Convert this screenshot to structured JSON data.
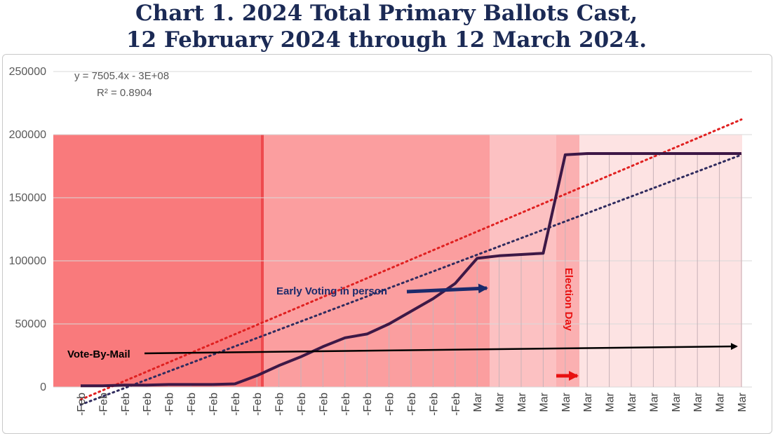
{
  "title_line1": "Chart 1. 2024 Total Primary Ballots Cast,",
  "title_line2": "12 February 2024 through 12 March 2024.",
  "chart_data": {
    "type": "line",
    "ylim": [
      0,
      250000
    ],
    "yticks": [
      0,
      50000,
      100000,
      150000,
      200000,
      250000
    ],
    "categories": [
      "-Feb",
      "-Feb",
      "-Feb",
      "-Feb",
      "-Feb",
      "-Feb",
      "-Feb",
      "-Feb",
      "-Feb",
      "-Feb",
      "-Feb",
      "-Feb",
      "-Feb",
      "-Feb",
      "-Feb",
      "-Feb",
      "-Feb",
      "-Feb",
      "Mar",
      "Mar",
      "Mar",
      "Mar",
      "Mar",
      "Mar",
      "Mar",
      "Mar",
      "Mar",
      "Mar",
      "Mar",
      "Mar",
      "Mar"
    ],
    "series": [
      {
        "values": [
          1000,
          1000,
          1500,
          1500,
          2000,
          2000,
          2000,
          2500,
          9000,
          17000,
          24000,
          32000,
          39000,
          42000,
          50000,
          60000,
          70000,
          82000,
          102000,
          104000,
          105000,
          106000,
          184000,
          185000,
          185000,
          185000,
          185000,
          185000,
          185000,
          185000,
          185000
        ],
        "color": "#3d1846"
      }
    ],
    "trendlines": [
      {
        "equation": "y = 7505.4x - 3E+08",
        "r_squared": "R² = 0.8904",
        "color": "#2f2b5e",
        "from": -14000,
        "to": 184000
      },
      {
        "color": "#e02020",
        "from": -10000,
        "to": 212000
      }
    ],
    "annotations": {
      "early_voting": "Early Voting in person",
      "vote_by_mail": "Vote-By-Mail",
      "election_day": "Election Day"
    },
    "colors": {
      "band1": "#f97a7c",
      "band2": "#fb9e9f",
      "band3": "#fcc1c2",
      "band4": "#fde3e3",
      "line": "#3d1846",
      "arrow_blue": "#1b2a6b",
      "arrow_red": "#e81010"
    }
  }
}
